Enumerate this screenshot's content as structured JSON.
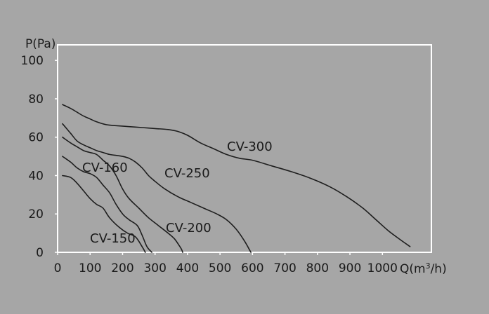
{
  "chart_data": {
    "type": "line",
    "x_axis_label": "Q(m³/h)",
    "y_axis_label": "P(Pa)",
    "xlim": [
      0,
      1150
    ],
    "ylim": [
      0,
      100
    ],
    "x_ticks": [
      0,
      100,
      200,
      300,
      400,
      500,
      600,
      700,
      800,
      900,
      1000
    ],
    "y_ticks": [
      0,
      20,
      40,
      60,
      80,
      100
    ],
    "grid": false,
    "series": [
      {
        "name": "CV-150",
        "points": [
          [
            15,
            40
          ],
          [
            40,
            39
          ],
          [
            60,
            36
          ],
          [
            80,
            32
          ],
          [
            100,
            28
          ],
          [
            120,
            25
          ],
          [
            140,
            23
          ],
          [
            160,
            18
          ],
          [
            190,
            13
          ],
          [
            215,
            10
          ],
          [
            240,
            8
          ],
          [
            260,
            3
          ],
          [
            270,
            0
          ]
        ]
      },
      {
        "name": "CV-160",
        "points": [
          [
            15,
            50
          ],
          [
            40,
            47
          ],
          [
            60,
            44
          ],
          [
            80,
            42
          ],
          [
            100,
            41
          ],
          [
            120,
            39
          ],
          [
            140,
            35
          ],
          [
            160,
            31
          ],
          [
            180,
            25
          ],
          [
            200,
            20
          ],
          [
            220,
            17
          ],
          [
            245,
            14
          ],
          [
            260,
            9
          ],
          [
            275,
            3
          ],
          [
            290,
            0
          ]
        ]
      },
      {
        "name": "CV-200",
        "points": [
          [
            15,
            60
          ],
          [
            40,
            57
          ],
          [
            60,
            55
          ],
          [
            80,
            53
          ],
          [
            100,
            52
          ],
          [
            120,
            51
          ],
          [
            140,
            48
          ],
          [
            160,
            45
          ],
          [
            180,
            40
          ],
          [
            200,
            33
          ],
          [
            220,
            28
          ],
          [
            250,
            23
          ],
          [
            280,
            18
          ],
          [
            310,
            14
          ],
          [
            340,
            10
          ],
          [
            360,
            7
          ],
          [
            380,
            2
          ],
          [
            385,
            0
          ]
        ]
      },
      {
        "name": "CV-250",
        "points": [
          [
            15,
            67
          ],
          [
            40,
            62
          ],
          [
            60,
            58
          ],
          [
            80,
            56
          ],
          [
            100,
            54.5
          ],
          [
            120,
            53
          ],
          [
            140,
            52
          ],
          [
            160,
            51
          ],
          [
            180,
            50.5
          ],
          [
            200,
            50
          ],
          [
            220,
            49
          ],
          [
            240,
            47
          ],
          [
            260,
            44
          ],
          [
            280,
            40
          ],
          [
            300,
            37
          ],
          [
            330,
            33
          ],
          [
            370,
            29
          ],
          [
            410,
            26
          ],
          [
            450,
            23
          ],
          [
            490,
            20
          ],
          [
            520,
            17
          ],
          [
            550,
            12
          ],
          [
            575,
            6
          ],
          [
            595,
            0
          ]
        ]
      },
      {
        "name": "CV-300",
        "points": [
          [
            15,
            77
          ],
          [
            40,
            75
          ],
          [
            60,
            73
          ],
          [
            80,
            71
          ],
          [
            100,
            69.5
          ],
          [
            120,
            68
          ],
          [
            150,
            66.5
          ],
          [
            180,
            66
          ],
          [
            220,
            65.5
          ],
          [
            260,
            65
          ],
          [
            300,
            64.5
          ],
          [
            340,
            64
          ],
          [
            370,
            63
          ],
          [
            400,
            61
          ],
          [
            440,
            57
          ],
          [
            480,
            54
          ],
          [
            520,
            51
          ],
          [
            560,
            49
          ],
          [
            600,
            48
          ],
          [
            660,
            45
          ],
          [
            720,
            42
          ],
          [
            780,
            38.5
          ],
          [
            840,
            34
          ],
          [
            890,
            29
          ],
          [
            940,
            23
          ],
          [
            980,
            17
          ],
          [
            1020,
            11
          ],
          [
            1060,
            6
          ],
          [
            1085,
            3
          ]
        ]
      }
    ]
  }
}
